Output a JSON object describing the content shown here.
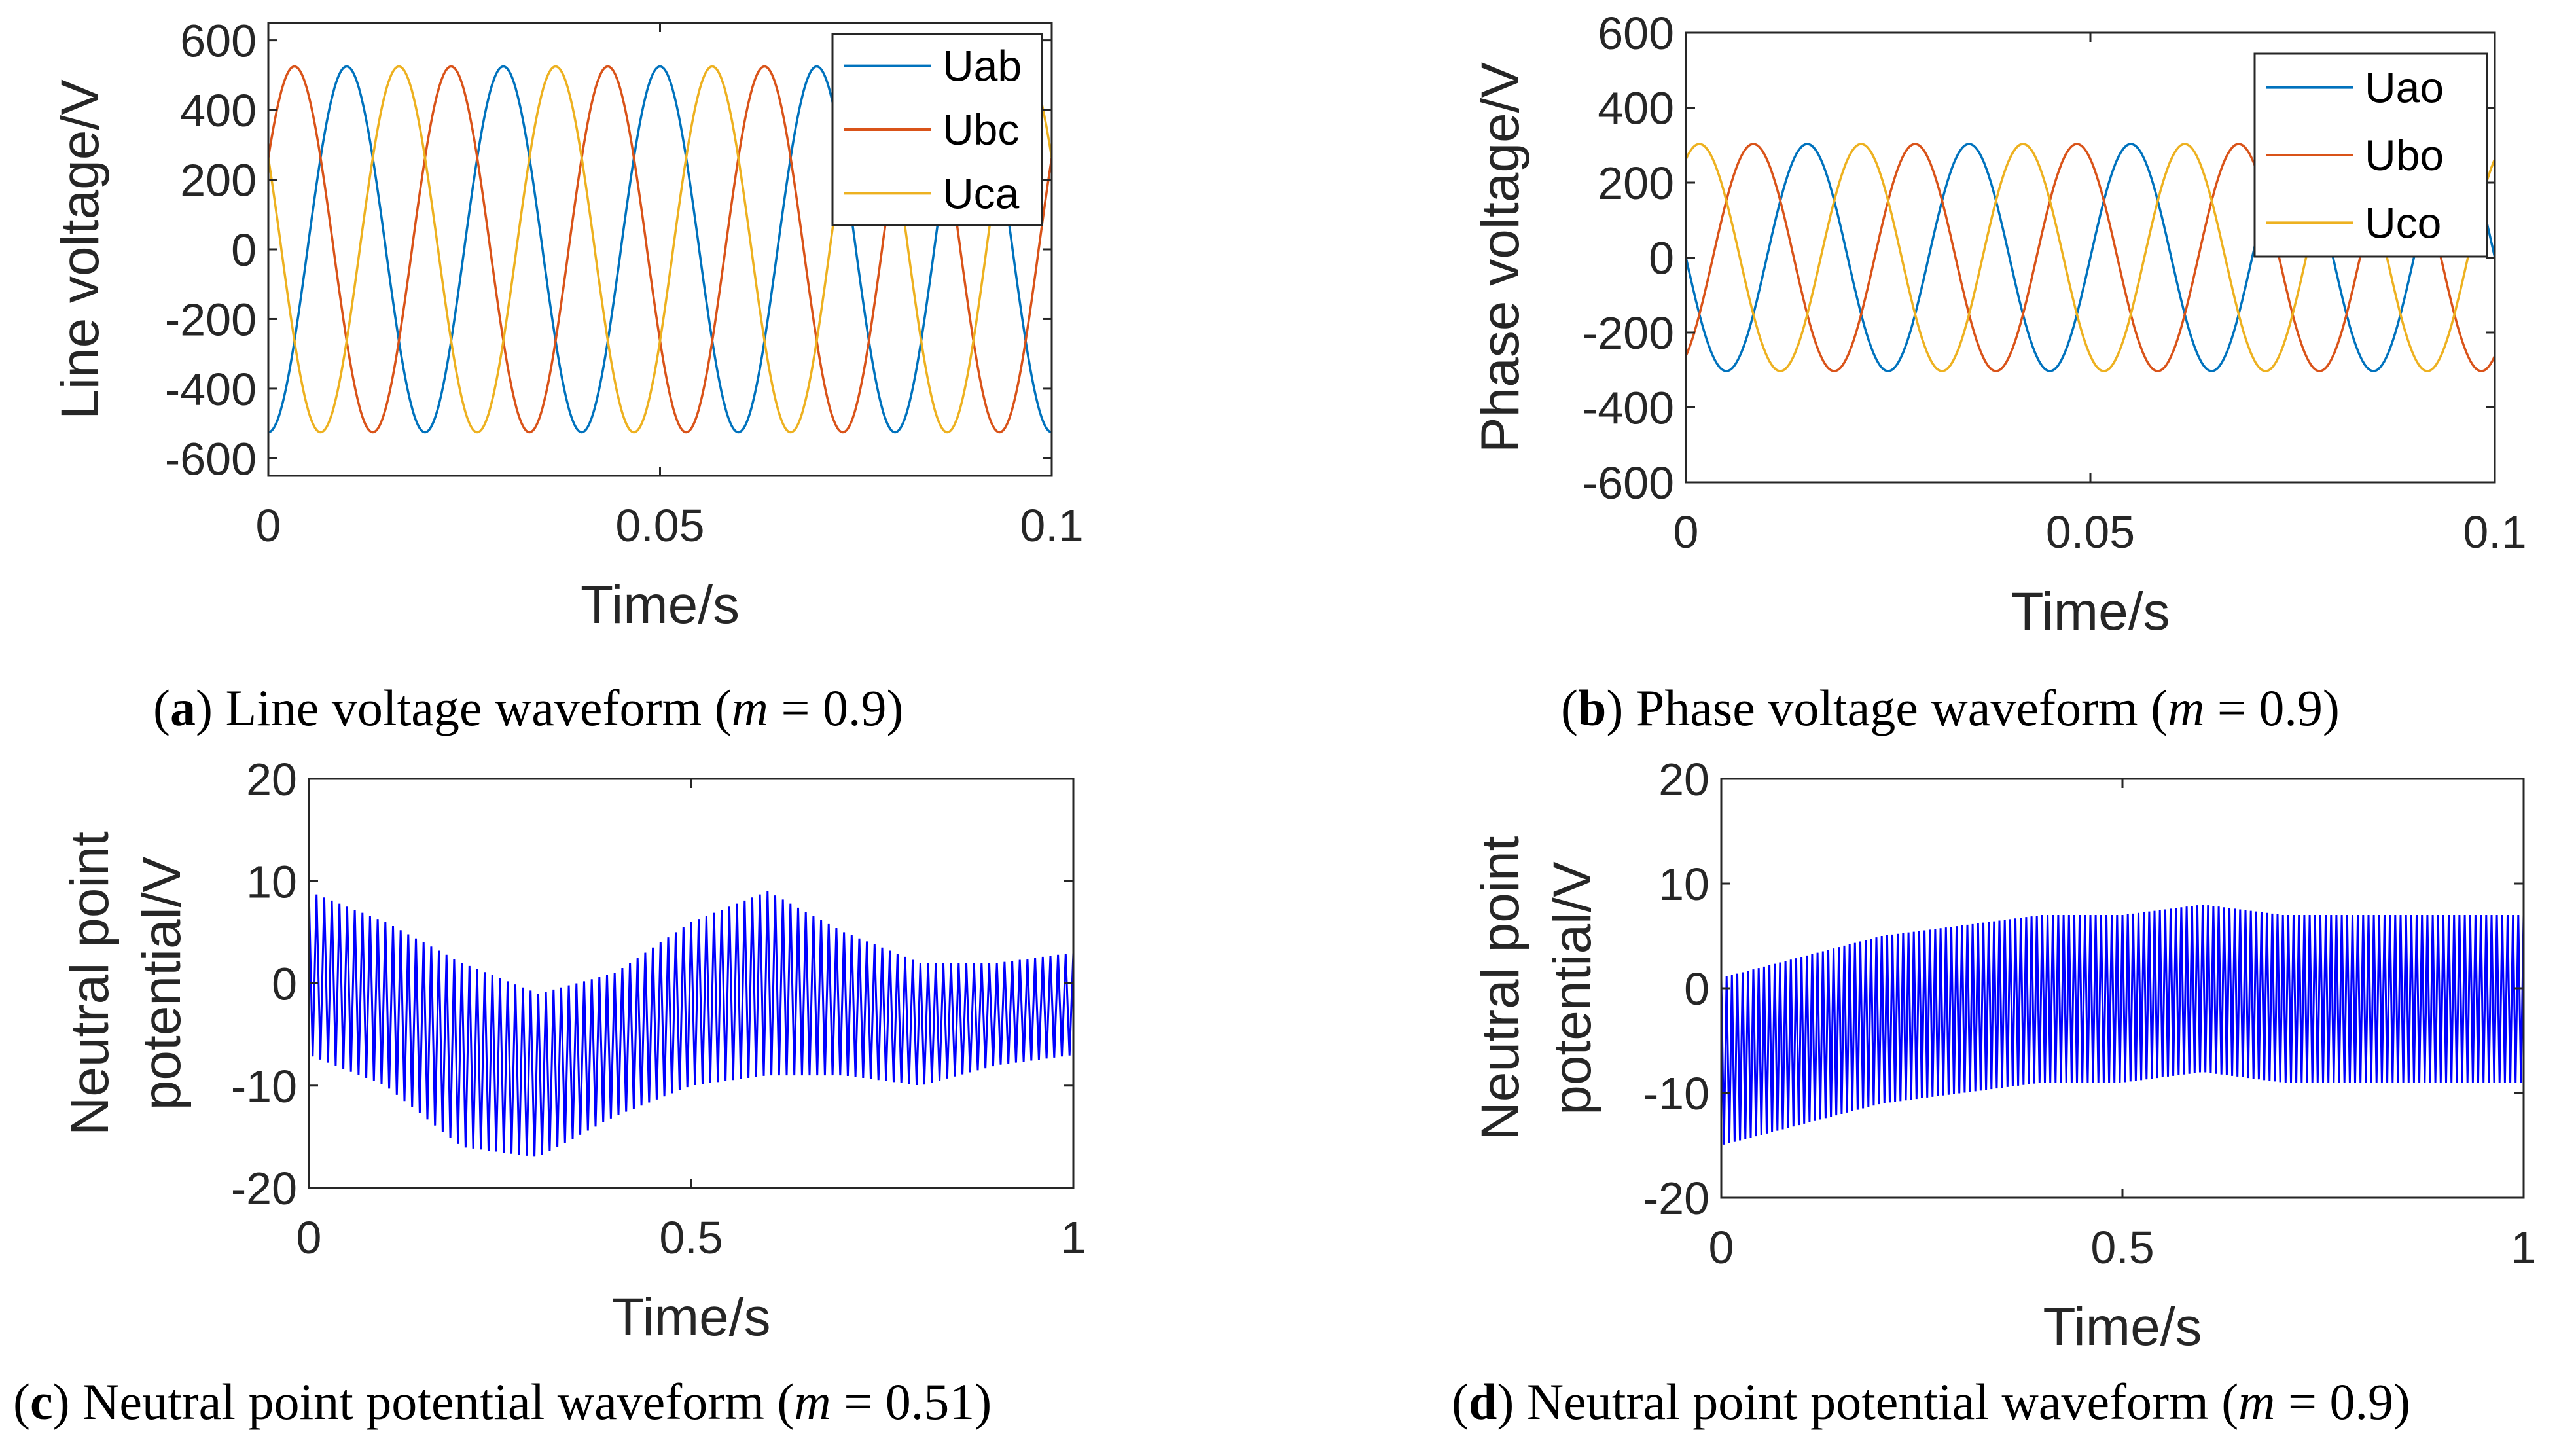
{
  "chart_data": [
    {
      "id": "a",
      "type": "line",
      "caption": {
        "label": "a",
        "text": "Line voltage waveform",
        "param_symbol": "m",
        "param_value": "0.9"
      },
      "xlabel": "Time/s",
      "ylabel": "Line voltage/V",
      "xlim": [
        0,
        0.1
      ],
      "ylim": [
        -650,
        650
      ],
      "xticks": [
        0,
        0.05,
        0.1
      ],
      "xtick_labels": [
        "0",
        "0.05",
        "0.1"
      ],
      "yticks": [
        600,
        400,
        200,
        0,
        -200,
        -400,
        -600
      ],
      "ytick_labels": [
        "600",
        "400",
        "200",
        "0",
        "-200",
        "-400",
        "-600"
      ],
      "legend_position": "top-right",
      "waveform": {
        "kind": "sine",
        "amplitude": 525,
        "frequency_hz": 50,
        "samples": 1200
      },
      "series": [
        {
          "name": "Uab",
          "color": "#0072BD",
          "phase_deg": 270
        },
        {
          "name": "Ubc",
          "color": "#D95319",
          "phase_deg": 30
        },
        {
          "name": "Uca",
          "color": "#EDB120",
          "phase_deg": 150
        }
      ]
    },
    {
      "id": "b",
      "type": "line",
      "caption": {
        "label": "b",
        "text": "Phase voltage waveform",
        "param_symbol": "m",
        "param_value": "0.9"
      },
      "xlabel": "Time/s",
      "ylabel": "Phase voltage/V",
      "xlim": [
        0,
        0.1
      ],
      "ylim": [
        -600,
        600
      ],
      "xticks": [
        0,
        0.05,
        0.1
      ],
      "xtick_labels": [
        "0",
        "0.05",
        "0.1"
      ],
      "yticks": [
        600,
        400,
        200,
        0,
        -200,
        -400,
        -600
      ],
      "ytick_labels": [
        "600",
        "400",
        "200",
        "0",
        "-200",
        "-400",
        "-600"
      ],
      "legend_position": "top-right",
      "waveform": {
        "kind": "sine",
        "amplitude": 303,
        "frequency_hz": 50,
        "samples": 1200
      },
      "series": [
        {
          "name": "Uao",
          "color": "#0072BD",
          "phase_deg": 180
        },
        {
          "name": "Ubo",
          "color": "#D95319",
          "phase_deg": 300
        },
        {
          "name": "Uco",
          "color": "#EDB120",
          "phase_deg": 60
        }
      ]
    },
    {
      "id": "c",
      "type": "line",
      "caption": {
        "label": "c",
        "text": "Neutral point potential waveform",
        "param_symbol": "m",
        "param_value": "0.51"
      },
      "xlabel": "Time/s",
      "ylabel_lines": [
        "Neutral point",
        "potential/V"
      ],
      "xlim": [
        0,
        1
      ],
      "ylim": [
        -20,
        20
      ],
      "xticks": [
        0,
        0.5,
        1
      ],
      "xtick_labels": [
        "0",
        "0.5",
        "1"
      ],
      "yticks": [
        20,
        10,
        0,
        -10,
        -20
      ],
      "ytick_labels": [
        "20",
        "10",
        "0",
        "-10",
        "-20"
      ],
      "series": [
        {
          "name": "Neutral point potential",
          "color": "#0000FF",
          "oscillation_cycles": 100,
          "center": {
            "t": [
              0,
              0.1,
              0.2,
              0.3,
              0.4,
              0.5,
              0.6,
              0.7,
              0.8,
              0.9,
              1.0
            ],
            "v": [
              1,
              -2,
              -7,
              -9,
              -6,
              -2,
              0,
              -2,
              -4,
              -3,
              -2
            ]
          },
          "half_amplitude": {
            "t": [
              0,
              0.1,
              0.2,
              0.3,
              0.4,
              0.5,
              0.6,
              0.7,
              0.8,
              0.9,
              1.0
            ],
            "v": [
              8,
              8,
              9,
              8,
              7,
              8,
              9,
              7,
              6,
              5,
              5
            ]
          }
        }
      ]
    },
    {
      "id": "d",
      "type": "line",
      "caption": {
        "label": "d",
        "text": "Neutral point potential waveform",
        "param_symbol": "m",
        "param_value": "0.9"
      },
      "xlabel": "Time/s",
      "ylabel_lines": [
        "Neutral point",
        "potential/V"
      ],
      "xlim": [
        0,
        1
      ],
      "ylim": [
        -20,
        20
      ],
      "xticks": [
        0,
        0.5,
        1
      ],
      "xtick_labels": [
        "0",
        "0.5",
        "1"
      ],
      "yticks": [
        20,
        10,
        0,
        -10,
        -20
      ],
      "ytick_labels": [
        "20",
        "10",
        "0",
        "-10",
        "-20"
      ],
      "series": [
        {
          "name": "Neutral point potential",
          "color": "#0000FF",
          "oscillation_cycles": 150,
          "center": {
            "t": [
              0,
              0.1,
              0.2,
              0.3,
              0.4,
              0.5,
              0.6,
              0.7,
              0.8,
              0.9,
              1.0
            ],
            "v": [
              -7,
              -5,
              -3,
              -2,
              -1,
              -1,
              0,
              -1,
              -1,
              -1,
              -1
            ]
          },
          "half_amplitude": {
            "t": [
              0,
              0.1,
              0.2,
              0.3,
              0.4,
              0.5,
              0.6,
              0.7,
              0.8,
              0.9,
              1.0
            ],
            "v": [
              8,
              8,
              8,
              8,
              8,
              8,
              8,
              8,
              8,
              8,
              8
            ]
          }
        }
      ]
    }
  ]
}
